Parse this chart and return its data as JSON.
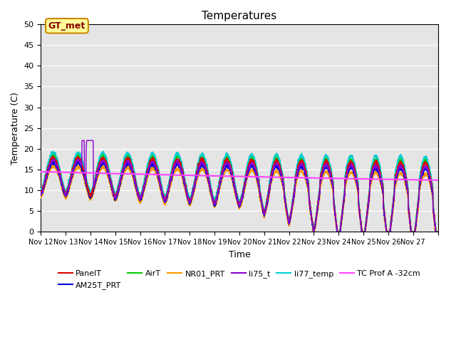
{
  "title": "Temperatures",
  "xlabel": "Time",
  "ylabel": "Temperature (C)",
  "xlim": [
    0,
    16
  ],
  "ylim": [
    0,
    50
  ],
  "yticks": [
    0,
    5,
    10,
    15,
    20,
    25,
    30,
    35,
    40,
    45,
    50
  ],
  "xtick_labels": [
    "Nov 12",
    "Nov 13",
    "Nov 14",
    "Nov 15",
    "Nov 16",
    "Nov 17",
    "Nov 18",
    "Nov 19",
    "Nov 20",
    "Nov 21",
    "Nov 22",
    "Nov 23",
    "Nov 24",
    "Nov 25",
    "Nov 26",
    "Nov 27"
  ],
  "background_color": "#e5e5e5",
  "series": {
    "PanelT": {
      "color": "#dd0000",
      "lw": 1.0
    },
    "AM25T_PRT": {
      "color": "#0000dd",
      "lw": 1.0
    },
    "AirT": {
      "color": "#00cc00",
      "lw": 1.0
    },
    "NR01_PRT": {
      "color": "#ff9900",
      "lw": 1.0
    },
    "li75_t": {
      "color": "#8800cc",
      "lw": 1.0
    },
    "li77_temp": {
      "color": "#00cccc",
      "lw": 1.0
    },
    "TC Prof A -32cm": {
      "color": "#ff44ff",
      "lw": 1.5
    }
  },
  "gt_met_box": {
    "text": "GT_met",
    "facecolor": "#ffff99",
    "edgecolor": "#cc8800",
    "textcolor": "#880000"
  }
}
